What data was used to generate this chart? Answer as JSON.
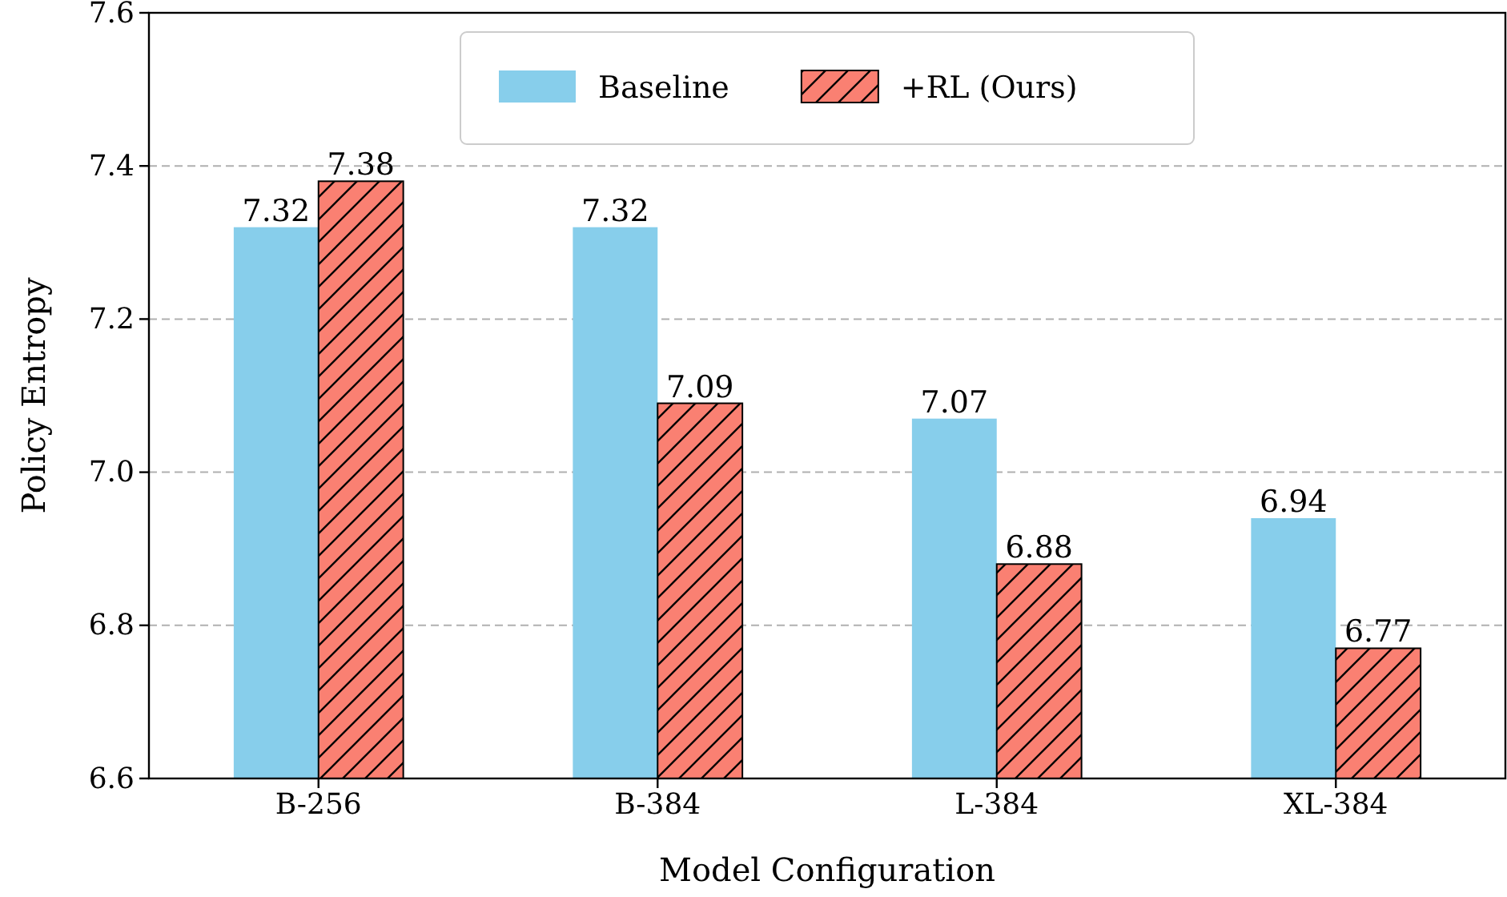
{
  "chart_data": {
    "type": "bar",
    "xlabel": "Model Configuration",
    "ylabel": "Policy Entropy",
    "categories": [
      "B-256",
      "B-384",
      "L-384",
      "XL-384"
    ],
    "series": [
      {
        "name": "Baseline",
        "color": "#87ceeb",
        "values": [
          7.32,
          7.32,
          7.07,
          6.94
        ]
      },
      {
        "name": "+RL (Ours)",
        "color": "#fa8072",
        "values": [
          7.38,
          7.09,
          6.88,
          6.77
        ]
      }
    ],
    "ylim": [
      6.6,
      7.6
    ],
    "yticks": [
      6.6,
      6.8,
      {
        "value": 7,
        "label": "7.0"
      },
      7.2,
      7.4,
      7.6
    ],
    "grid": "y",
    "legend": "top",
    "data_labels": true
  }
}
